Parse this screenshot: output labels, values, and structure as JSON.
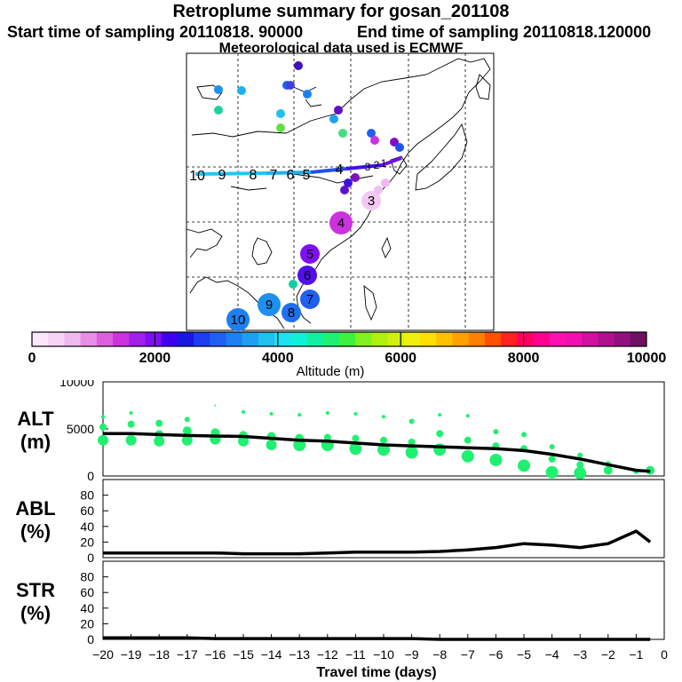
{
  "header": {
    "title": "Retroplume summary for gosan_201108",
    "start_label": "Start time of sampling 20110818. 90000",
    "end_label": "End time of sampling 20110818.120000",
    "met_label": "Meteorological data used is ECMWF"
  },
  "colorbar": {
    "ticks": [
      "0",
      "2000",
      "4000",
      "6000",
      "8000",
      "10000"
    ],
    "tick_values": [
      0,
      2000,
      4000,
      6000,
      8000,
      10000
    ],
    "xlabel": "Altitude (m)",
    "colors": [
      "#fbe6fb",
      "#f7d2f7",
      "#f0b8f0",
      "#e98de9",
      "#dd5fdd",
      "#cc33dd",
      "#a020e8",
      "#7f0ff0",
      "#4000f0",
      "#1818e0",
      "#1e3cf0",
      "#2060f0",
      "#1e80f0",
      "#1ea0f0",
      "#20c0f0",
      "#20e0f0",
      "#10f0d8",
      "#10f0a0",
      "#20f070",
      "#40f040",
      "#80f020",
      "#b0f010",
      "#d0f010",
      "#f0f010",
      "#ffe000",
      "#ffc000",
      "#ffa000",
      "#ff8000",
      "#ff5000",
      "#ff2020",
      "#ff0060",
      "#ff0090",
      "#ff10b0",
      "#f010b0",
      "#d010a0",
      "#b01090",
      "#901080",
      "#701060"
    ]
  },
  "map": {
    "trajectory_labels": [
      "10",
      "9",
      "8",
      "7",
      "6",
      "5",
      "4",
      "3",
      "2",
      "1"
    ],
    "cluster_labels": [
      "10",
      "9",
      "8",
      "7",
      "6",
      "5",
      "4",
      "3"
    ]
  },
  "chart_data": [
    {
      "type": "line",
      "panel": "ALT",
      "ylabel": "ALT (m)",
      "ylabel_lines": [
        "ALT",
        "(m)"
      ],
      "ylim": [
        0,
        10000
      ],
      "yticks": [
        "10000",
        "5000",
        "0"
      ],
      "ytick_values": [
        10000,
        5000,
        0
      ],
      "series": [
        {
          "name": "median altitude",
          "x": [
            -20,
            -19,
            -18,
            -17,
            -16,
            -15,
            -14,
            -13,
            -12,
            -11,
            -10,
            -9,
            -8,
            -7,
            -6,
            -5,
            -4,
            -3,
            -2,
            -1,
            -0.5
          ],
          "values": [
            4500,
            4500,
            4400,
            4300,
            4250,
            4200,
            4000,
            3800,
            3700,
            3500,
            3300,
            3200,
            3100,
            3000,
            2900,
            2700,
            2300,
            1800,
            1200,
            600,
            500
          ]
        }
      ],
      "scatter_points": [
        {
          "x": -20,
          "y": 3800,
          "s": 6
        },
        {
          "x": -20,
          "y": 5200,
          "s": 4
        },
        {
          "x": -20,
          "y": 6300,
          "s": 2
        },
        {
          "x": -19,
          "y": 3800,
          "s": 6
        },
        {
          "x": -19,
          "y": 5500,
          "s": 4
        },
        {
          "x": -19,
          "y": 6700,
          "s": 2
        },
        {
          "x": -18,
          "y": 3700,
          "s": 6
        },
        {
          "x": -18,
          "y": 4400,
          "s": 5
        },
        {
          "x": -18,
          "y": 5600,
          "s": 4
        },
        {
          "x": -17,
          "y": 3800,
          "s": 6
        },
        {
          "x": -17,
          "y": 4800,
          "s": 5
        },
        {
          "x": -17,
          "y": 6000,
          "s": 3
        },
        {
          "x": -16,
          "y": 3900,
          "s": 6
        },
        {
          "x": -16,
          "y": 4600,
          "s": 5
        },
        {
          "x": -16,
          "y": 7500,
          "s": 1
        },
        {
          "x": -15,
          "y": 3700,
          "s": 6
        },
        {
          "x": -15,
          "y": 4300,
          "s": 5
        },
        {
          "x": -15,
          "y": 6800,
          "s": 2
        },
        {
          "x": -14,
          "y": 3300,
          "s": 6
        },
        {
          "x": -14,
          "y": 4200,
          "s": 5
        },
        {
          "x": -14,
          "y": 6600,
          "s": 2
        },
        {
          "x": -13,
          "y": 3300,
          "s": 7
        },
        {
          "x": -13,
          "y": 4000,
          "s": 5
        },
        {
          "x": -13,
          "y": 6500,
          "s": 2
        },
        {
          "x": -12,
          "y": 3300,
          "s": 7
        },
        {
          "x": -12,
          "y": 4100,
          "s": 4
        },
        {
          "x": -12,
          "y": 6700,
          "s": 2
        },
        {
          "x": -11,
          "y": 2900,
          "s": 7
        },
        {
          "x": -11,
          "y": 4000,
          "s": 4
        },
        {
          "x": -11,
          "y": 6600,
          "s": 2
        },
        {
          "x": -10,
          "y": 2800,
          "s": 7
        },
        {
          "x": -10,
          "y": 3800,
          "s": 4
        },
        {
          "x": -10,
          "y": 6300,
          "s": 2
        },
        {
          "x": -9,
          "y": 2500,
          "s": 7
        },
        {
          "x": -9,
          "y": 3600,
          "s": 4
        },
        {
          "x": -9,
          "y": 5800,
          "s": 3
        },
        {
          "x": -8,
          "y": 2800,
          "s": 7
        },
        {
          "x": -8,
          "y": 4500,
          "s": 4
        },
        {
          "x": -8,
          "y": 6500,
          "s": 2
        },
        {
          "x": -7,
          "y": 2100,
          "s": 7
        },
        {
          "x": -7,
          "y": 3800,
          "s": 4
        },
        {
          "x": -7,
          "y": 6400,
          "s": 2
        },
        {
          "x": -6,
          "y": 1700,
          "s": 7
        },
        {
          "x": -6,
          "y": 3200,
          "s": 4
        },
        {
          "x": -6,
          "y": 4700,
          "s": 3
        },
        {
          "x": -5,
          "y": 1100,
          "s": 7
        },
        {
          "x": -5,
          "y": 2900,
          "s": 4
        },
        {
          "x": -5,
          "y": 4400,
          "s": 3
        },
        {
          "x": -4,
          "y": 400,
          "s": 7
        },
        {
          "x": -4,
          "y": 1800,
          "s": 4
        },
        {
          "x": -4,
          "y": 3100,
          "s": 3
        },
        {
          "x": -3,
          "y": 300,
          "s": 7
        },
        {
          "x": -3,
          "y": 1200,
          "s": 4
        },
        {
          "x": -3,
          "y": 2200,
          "s": 3
        },
        {
          "x": -2,
          "y": 600,
          "s": 5
        },
        {
          "x": -2,
          "y": 1300,
          "s": 3
        },
        {
          "x": -1,
          "y": 500,
          "s": 3
        },
        {
          "x": -0.5,
          "y": 600,
          "s": 5
        }
      ]
    },
    {
      "type": "line",
      "panel": "ABL",
      "ylabel": "ABL (%)",
      "ylabel_lines": [
        "ABL",
        "(%)"
      ],
      "ylim": [
        0,
        100
      ],
      "yticks": [
        "80",
        "60",
        "40",
        "20",
        "0"
      ],
      "ytick_values": [
        80,
        60,
        40,
        20,
        0
      ],
      "series": [
        {
          "name": "fraction in ABL",
          "x": [
            -20,
            -19,
            -18,
            -17,
            -16,
            -15,
            -14,
            -13,
            -12,
            -11,
            -10,
            -9,
            -8,
            -7,
            -6,
            -5,
            -4,
            -3,
            -2,
            -1,
            -0.5
          ],
          "values": [
            6,
            6,
            6,
            6,
            6,
            5,
            5,
            5,
            6,
            7,
            7,
            7,
            8,
            10,
            13,
            18,
            16,
            13,
            18,
            34,
            20
          ]
        }
      ]
    },
    {
      "type": "line",
      "panel": "STR",
      "ylabel": "STR (%)",
      "ylabel_lines": [
        "STR",
        "(%)"
      ],
      "ylim": [
        0,
        100
      ],
      "yticks": [
        "80",
        "60",
        "40",
        "20",
        "0"
      ],
      "ytick_values": [
        80,
        60,
        40,
        20,
        0
      ],
      "xlabel": "Travel time (days)",
      "xlim": [
        -20,
        0
      ],
      "xticks": [
        "−20",
        "−19",
        "−18",
        "−17",
        "−16",
        "−15",
        "−14",
        "−13",
        "−12",
        "−11",
        "−10",
        "−9",
        "−8",
        "−7",
        "−6",
        "−5",
        "−4",
        "−3",
        "−2",
        "−1",
        "0"
      ],
      "xtick_values": [
        -20,
        -19,
        -18,
        -17,
        -16,
        -15,
        -14,
        -13,
        -12,
        -11,
        -10,
        -9,
        -8,
        -7,
        -6,
        -5,
        -4,
        -3,
        -2,
        -1,
        0
      ],
      "series": [
        {
          "name": "fraction in stratosphere",
          "x": [
            -20,
            -19,
            -18,
            -17,
            -16,
            -15,
            -14,
            -13,
            -12,
            -11,
            -10,
            -9,
            -8,
            -7,
            -6,
            -5,
            -4,
            -3,
            -2,
            -1,
            -0.5
          ],
          "values": [
            2,
            2,
            2,
            2,
            1,
            1,
            1,
            1,
            1,
            1,
            1,
            1,
            0,
            0,
            0,
            0,
            0,
            0,
            0,
            0,
            0
          ]
        }
      ]
    }
  ]
}
